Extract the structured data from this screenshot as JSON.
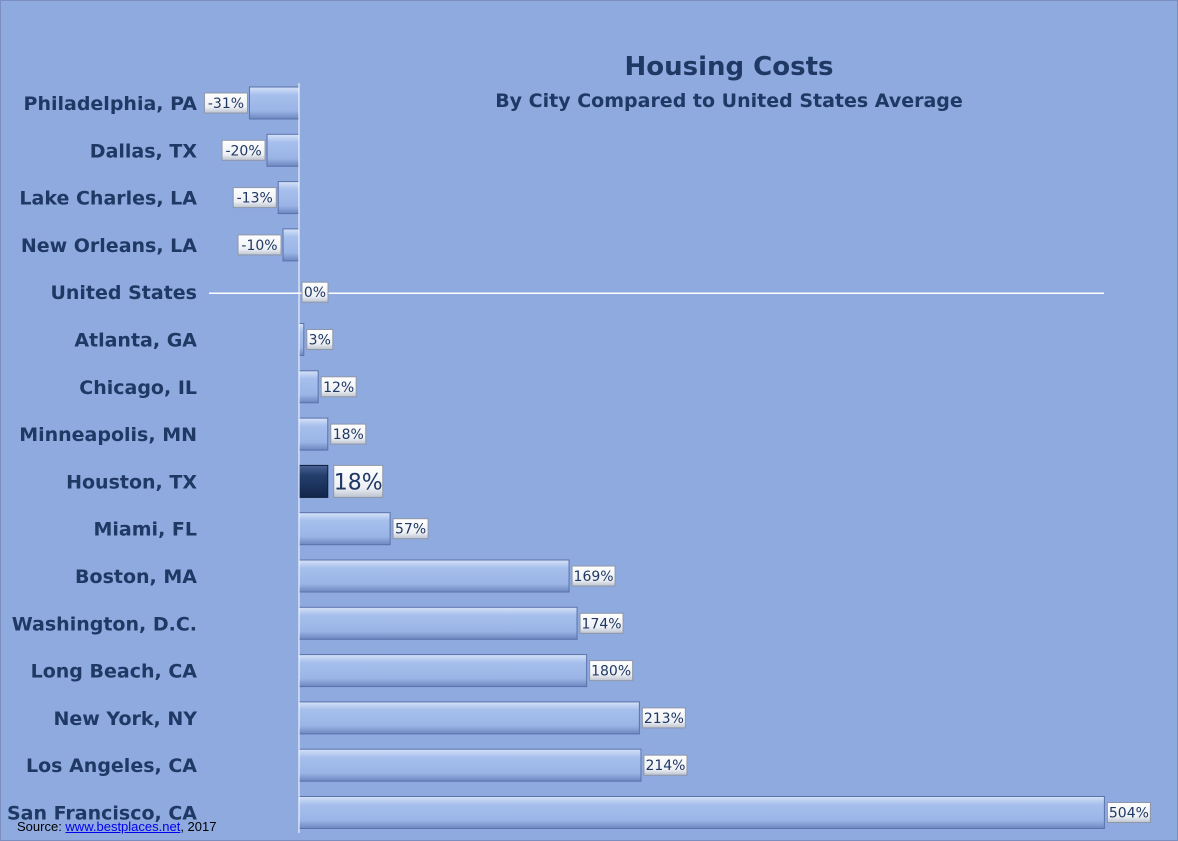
{
  "chart_data": {
    "type": "bar",
    "orientation": "horizontal",
    "title": "Housing Costs",
    "subtitle": "By City Compared to United States Average",
    "categories": [
      "Philadelphia, PA",
      "Dallas, TX",
      "Lake Charles, LA",
      "New Orleans, LA",
      "United States",
      "Atlanta, GA",
      "Chicago, IL",
      "Minneapolis, MN",
      "Houston, TX",
      "Miami, FL",
      "Boston, MA",
      "Washington, D.C.",
      "Long Beach, CA",
      "New York, NY",
      "Los Angeles,  CA",
      "San Francisco, CA"
    ],
    "values": [
      -31,
      -20,
      -13,
      -10,
      0,
      3,
      12,
      18,
      18,
      57,
      169,
      174,
      180,
      213,
      214,
      504
    ],
    "labels": [
      "-31%",
      "-20%",
      "-13%",
      "-10%",
      "0%",
      "3%",
      "12%",
      "18%",
      "18%",
      "57%",
      "169%",
      "174%",
      "180%",
      "213%",
      "214%",
      "504%"
    ],
    "highlight": "Houston, TX",
    "xlim": [
      -31,
      504
    ],
    "grid": false,
    "legend": "none",
    "colors": {
      "background": "#8eaadf",
      "bar": "#9fb8ea",
      "highlight_bar": "#1f3864",
      "text": "#1f3864"
    }
  },
  "source": {
    "prefix": "Source: ",
    "link_text": "www.bestplaces.net",
    "suffix": ", 2017"
  }
}
